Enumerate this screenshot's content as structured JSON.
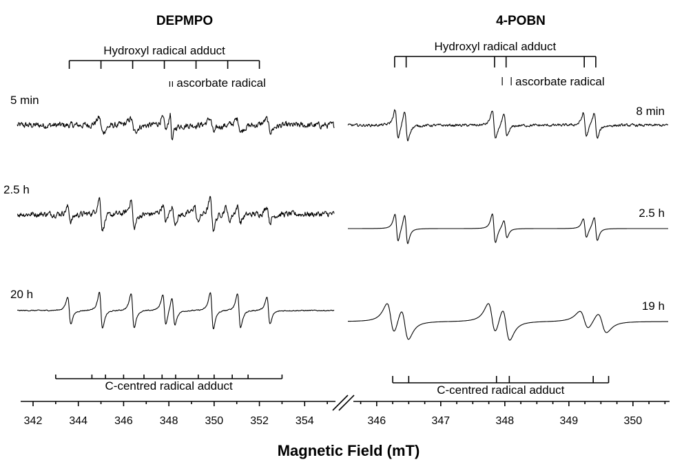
{
  "chart_data": {
    "type": "line",
    "xlabel": "Magnetic Field (mT)",
    "axis_break": true,
    "panels": [
      {
        "title": "DEPMPO",
        "xlim": [
          341.3,
          355.3
        ],
        "xticks": [
          342,
          344,
          346,
          348,
          350,
          352,
          354
        ],
        "top_stick": {
          "label": "Hydroxyl radical adduct",
          "positions": [
            343.6,
            345.0,
            346.4,
            347.8,
            349.2,
            350.6,
            352.0
          ]
        },
        "secondary_marker": {
          "label": "ascorbate radical",
          "positions": [
            348.04,
            348.16
          ]
        },
        "bottom_stick": {
          "label": "C-centred radical adduct",
          "positions": [
            343.0,
            344.6,
            345.2,
            346.0,
            346.9,
            347.7,
            348.3,
            349.3,
            350.0,
            350.8,
            351.5,
            353.0
          ]
        },
        "series": [
          {
            "name": "5 min",
            "lines": [
              345.0,
              346.4,
              347.8,
              348.1,
              349.9,
              351.1,
              352.4
            ],
            "amplitudes": [
              0.55,
              0.5,
              0.45,
              1.0,
              0.5,
              0.45,
              0.45
            ],
            "widths": [
              0.09,
              0.09,
              0.09,
              0.05,
              0.09,
              0.09,
              0.09
            ],
            "noise": 0.16
          },
          {
            "name": "2.5 h",
            "lines": [
              343.6,
              345.0,
              346.4,
              347.8,
              348.2,
              349.2,
              349.9,
              350.6,
              351.1,
              352.4
            ],
            "amplitudes": [
              0.45,
              1.0,
              0.9,
              0.55,
              0.55,
              0.5,
              0.95,
              0.45,
              0.5,
              0.5
            ],
            "widths": [
              0.07,
              0.07,
              0.07,
              0.07,
              0.07,
              0.07,
              0.07,
              0.07,
              0.07,
              0.07
            ],
            "noise": 0.13
          },
          {
            "name": "20 h",
            "lines": [
              343.6,
              345.0,
              346.4,
              347.8,
              348.2,
              349.9,
              351.1,
              352.4
            ],
            "amplitudes": [
              0.75,
              1.0,
              0.95,
              0.85,
              0.75,
              1.0,
              0.95,
              0.75
            ],
            "widths": [
              0.07,
              0.07,
              0.07,
              0.07,
              0.07,
              0.07,
              0.07,
              0.07
            ],
            "noise": 0.02
          }
        ]
      },
      {
        "title": "4-POBN",
        "xlim": [
          345.55,
          350.55
        ],
        "xticks": [
          346,
          347,
          348,
          349,
          350
        ],
        "top_stick": {
          "label": "Hydroxyl radical adduct",
          "positions": [
            346.28,
            346.46,
            347.84,
            348.02,
            349.24,
            349.42
          ]
        },
        "secondary_marker": {
          "label": "ascorbate radical",
          "positions": [
            347.96,
            348.1
          ]
        },
        "bottom_stick": {
          "label": "C-centred radical adduct",
          "positions": [
            346.25,
            346.5,
            347.87,
            348.07,
            349.38,
            349.62
          ]
        },
        "series": [
          {
            "name": "8 min",
            "lines": [
              346.31,
              346.46,
              347.83,
              348.01,
              349.25,
              349.42
            ],
            "amplitudes": [
              0.95,
              0.95,
              0.95,
              0.7,
              0.75,
              0.85
            ],
            "widths": [
              0.025,
              0.025,
              0.025,
              0.025,
              0.025,
              0.025
            ],
            "noise": 0.06
          },
          {
            "name": "2.5 h",
            "lines": [
              346.31,
              346.46,
              347.83,
              348.01,
              349.25,
              349.42
            ],
            "amplitudes": [
              0.95,
              1.0,
              1.0,
              0.6,
              0.65,
              0.8
            ],
            "widths": [
              0.025,
              0.025,
              0.025,
              0.025,
              0.025,
              0.025
            ],
            "noise": 0.0
          },
          {
            "name": "19 h",
            "lines": [
              346.22,
              346.44,
              347.8,
              348.02,
              349.24,
              349.52
            ],
            "amplitudes": [
              0.95,
              0.95,
              0.95,
              1.0,
              0.55,
              0.6
            ],
            "widths": [
              0.06,
              0.06,
              0.06,
              0.06,
              0.07,
              0.07
            ],
            "noise": 0.0
          }
        ]
      }
    ]
  }
}
